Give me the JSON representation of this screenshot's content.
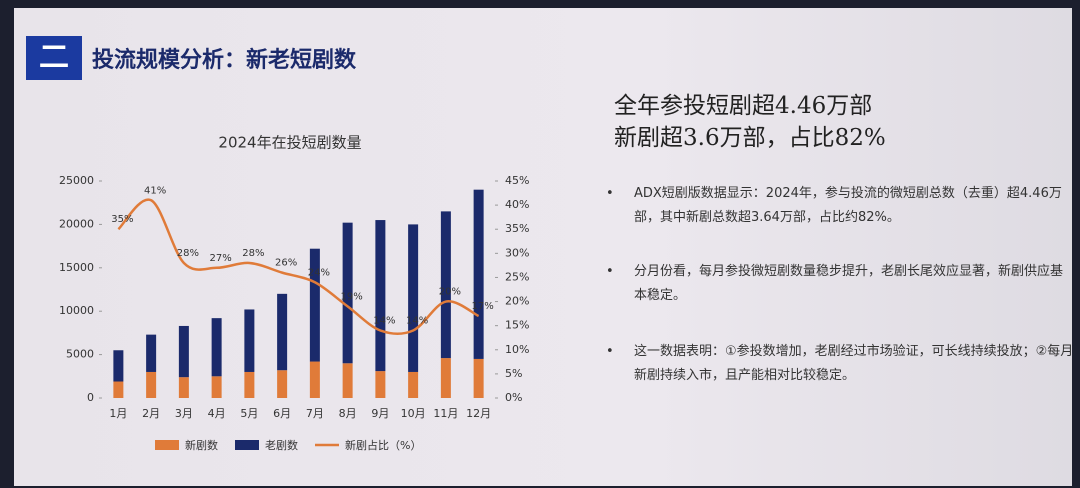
{
  "header": {
    "number": "二",
    "title": "投流规模分析：新老短剧数"
  },
  "summary": {
    "headline": [
      "全年参投短剧超4.46万部",
      "新剧超3.6万部，占比82%"
    ],
    "bullets": [
      "ADX短剧版数据显示：2024年，参与投流的微短剧总数（去重）超4.46万部，其中新剧总数超3.64万部，占比约82%。",
      "分月份看，每月参投微短剧数量稳步提升，老剧长尾效应显著，新剧供应基本稳定。",
      "这一数据表明：①参投数增加，老剧经过市场验证，可长线持续投放；②每月新剧持续入市，且产能相对比较稳定。"
    ]
  },
  "chart_data": {
    "type": "bar",
    "title": "2024年在投短剧数量",
    "categories": [
      "1月",
      "2月",
      "3月",
      "4月",
      "5月",
      "6月",
      "7月",
      "8月",
      "9月",
      "10月",
      "11月",
      "12月"
    ],
    "series": [
      {
        "name": "新剧数",
        "color": "#e07b39",
        "values": [
          1900,
          3000,
          2400,
          2500,
          3000,
          3200,
          4200,
          4000,
          3100,
          3000,
          4600,
          4500
        ]
      },
      {
        "name": "老剧数",
        "color": "#1b2a6b",
        "values": [
          3600,
          4300,
          5900,
          6700,
          7200,
          8800,
          13000,
          16200,
          17400,
          17000,
          16900,
          19500
        ]
      },
      {
        "name": "新剧占比（%）",
        "color": "#e07b39",
        "type": "line",
        "axis": "y2",
        "values": [
          35,
          41,
          28,
          27,
          28,
          26,
          24,
          19,
          14,
          14,
          20,
          17
        ],
        "value_labels": [
          "35%",
          "41%",
          "28%",
          "27%",
          "28%",
          "26%",
          "24%",
          "19%",
          "14%",
          "14%",
          "20%",
          "17%"
        ]
      }
    ],
    "ylim": [
      0,
      25000
    ],
    "yticks": [
      0,
      5000,
      10000,
      15000,
      20000,
      25000
    ],
    "y2lim": [
      0,
      45
    ],
    "y2ticks": [
      {
        "value": 0,
        "label": "0%"
      },
      {
        "value": 5,
        "label": "5%"
      },
      {
        "value": 10,
        "label": "10%"
      },
      {
        "value": 15,
        "label": "15%"
      },
      {
        "value": 20,
        "label": "20%"
      },
      {
        "value": 25,
        "label": "25%"
      },
      {
        "value": 30,
        "label": "30%"
      },
      {
        "value": 35,
        "label": "35%"
      },
      {
        "value": 40,
        "label": "40%"
      },
      {
        "value": 45,
        "label": "45%"
      }
    ],
    "grid": false,
    "legend": "bottom"
  }
}
